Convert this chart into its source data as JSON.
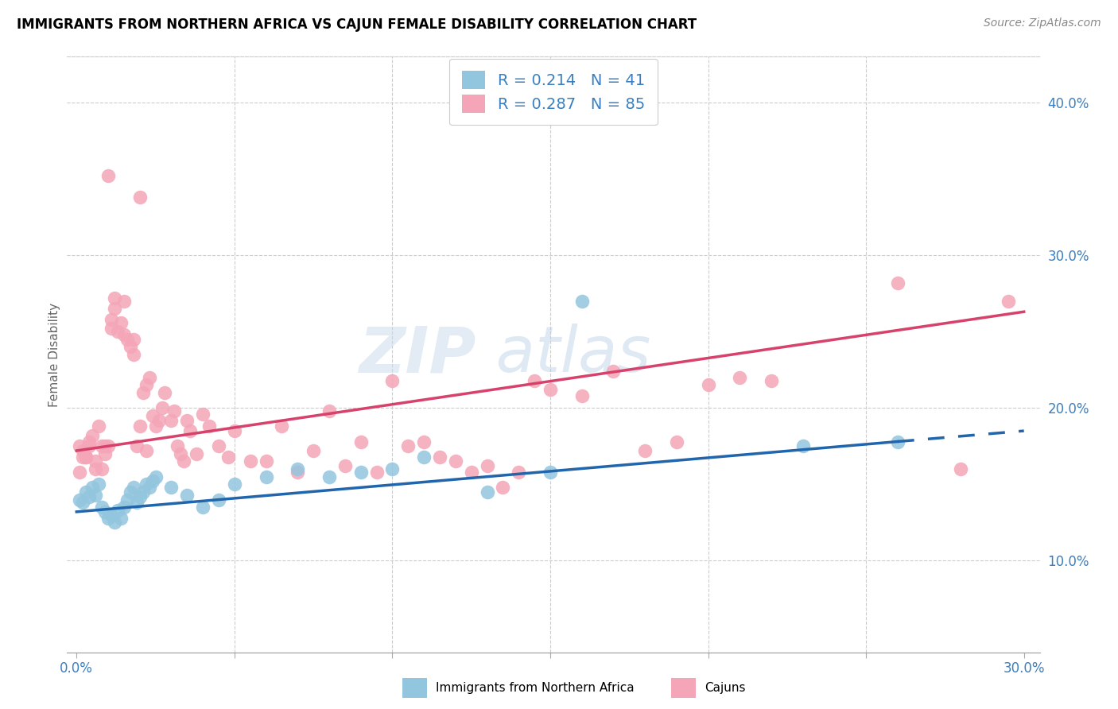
{
  "title": "IMMIGRANTS FROM NORTHERN AFRICA VS CAJUN FEMALE DISABILITY CORRELATION CHART",
  "source": "Source: ZipAtlas.com",
  "ylabel_label": "Female Disability",
  "xlim": [
    -0.003,
    0.305
  ],
  "ylim": [
    0.04,
    0.43
  ],
  "blue_color": "#92c5de",
  "pink_color": "#f4a6b8",
  "line_blue": "#2166ac",
  "line_pink": "#d6426b",
  "blue_line_start_y": 0.132,
  "blue_line_end_solid_x": 0.26,
  "blue_line_end_solid_y": 0.178,
  "blue_line_end_dash_x": 0.3,
  "blue_line_end_dash_y": 0.185,
  "pink_line_start_y": 0.172,
  "pink_line_end_x": 0.3,
  "pink_line_end_y": 0.263,
  "blue_scatter_x": [
    0.001,
    0.002,
    0.003,
    0.004,
    0.005,
    0.006,
    0.007,
    0.008,
    0.009,
    0.01,
    0.011,
    0.012,
    0.013,
    0.014,
    0.015,
    0.016,
    0.017,
    0.018,
    0.019,
    0.02,
    0.021,
    0.022,
    0.023,
    0.024,
    0.025,
    0.03,
    0.035,
    0.04,
    0.045,
    0.05,
    0.06,
    0.07,
    0.08,
    0.09,
    0.1,
    0.11,
    0.13,
    0.15,
    0.16,
    0.23,
    0.26
  ],
  "blue_scatter_y": [
    0.14,
    0.138,
    0.145,
    0.142,
    0.148,
    0.143,
    0.15,
    0.135,
    0.132,
    0.128,
    0.13,
    0.125,
    0.133,
    0.128,
    0.135,
    0.14,
    0.145,
    0.148,
    0.138,
    0.142,
    0.145,
    0.15,
    0.148,
    0.152,
    0.155,
    0.148,
    0.143,
    0.135,
    0.14,
    0.15,
    0.155,
    0.16,
    0.155,
    0.158,
    0.16,
    0.168,
    0.145,
    0.158,
    0.27,
    0.175,
    0.178
  ],
  "pink_scatter_x": [
    0.001,
    0.002,
    0.003,
    0.004,
    0.005,
    0.006,
    0.007,
    0.008,
    0.009,
    0.01,
    0.011,
    0.012,
    0.013,
    0.014,
    0.015,
    0.016,
    0.017,
    0.018,
    0.019,
    0.02,
    0.021,
    0.022,
    0.023,
    0.024,
    0.025,
    0.026,
    0.027,
    0.028,
    0.03,
    0.031,
    0.032,
    0.033,
    0.034,
    0.035,
    0.036,
    0.038,
    0.04,
    0.042,
    0.045,
    0.048,
    0.05,
    0.055,
    0.06,
    0.065,
    0.07,
    0.075,
    0.08,
    0.085,
    0.09,
    0.095,
    0.1,
    0.105,
    0.11,
    0.115,
    0.12,
    0.125,
    0.13,
    0.135,
    0.14,
    0.145,
    0.15,
    0.16,
    0.17,
    0.18,
    0.19,
    0.2,
    0.21,
    0.22,
    0.01,
    0.012,
    0.015,
    0.018,
    0.02,
    0.022,
    0.008,
    0.009,
    0.011,
    0.006,
    0.004,
    0.003,
    0.002,
    0.001,
    0.26,
    0.28,
    0.295
  ],
  "pink_scatter_y": [
    0.175,
    0.172,
    0.168,
    0.178,
    0.182,
    0.165,
    0.188,
    0.175,
    0.17,
    0.175,
    0.258,
    0.265,
    0.25,
    0.256,
    0.248,
    0.245,
    0.24,
    0.235,
    0.175,
    0.188,
    0.21,
    0.215,
    0.22,
    0.195,
    0.188,
    0.192,
    0.2,
    0.21,
    0.192,
    0.198,
    0.175,
    0.17,
    0.165,
    0.192,
    0.185,
    0.17,
    0.196,
    0.188,
    0.175,
    0.168,
    0.185,
    0.165,
    0.165,
    0.188,
    0.158,
    0.172,
    0.198,
    0.162,
    0.178,
    0.158,
    0.218,
    0.175,
    0.178,
    0.168,
    0.165,
    0.158,
    0.162,
    0.148,
    0.158,
    0.218,
    0.212,
    0.208,
    0.224,
    0.172,
    0.178,
    0.215,
    0.22,
    0.218,
    0.352,
    0.272,
    0.27,
    0.245,
    0.338,
    0.172,
    0.16,
    0.175,
    0.252,
    0.16,
    0.175,
    0.168,
    0.168,
    0.158,
    0.282,
    0.16,
    0.27
  ]
}
